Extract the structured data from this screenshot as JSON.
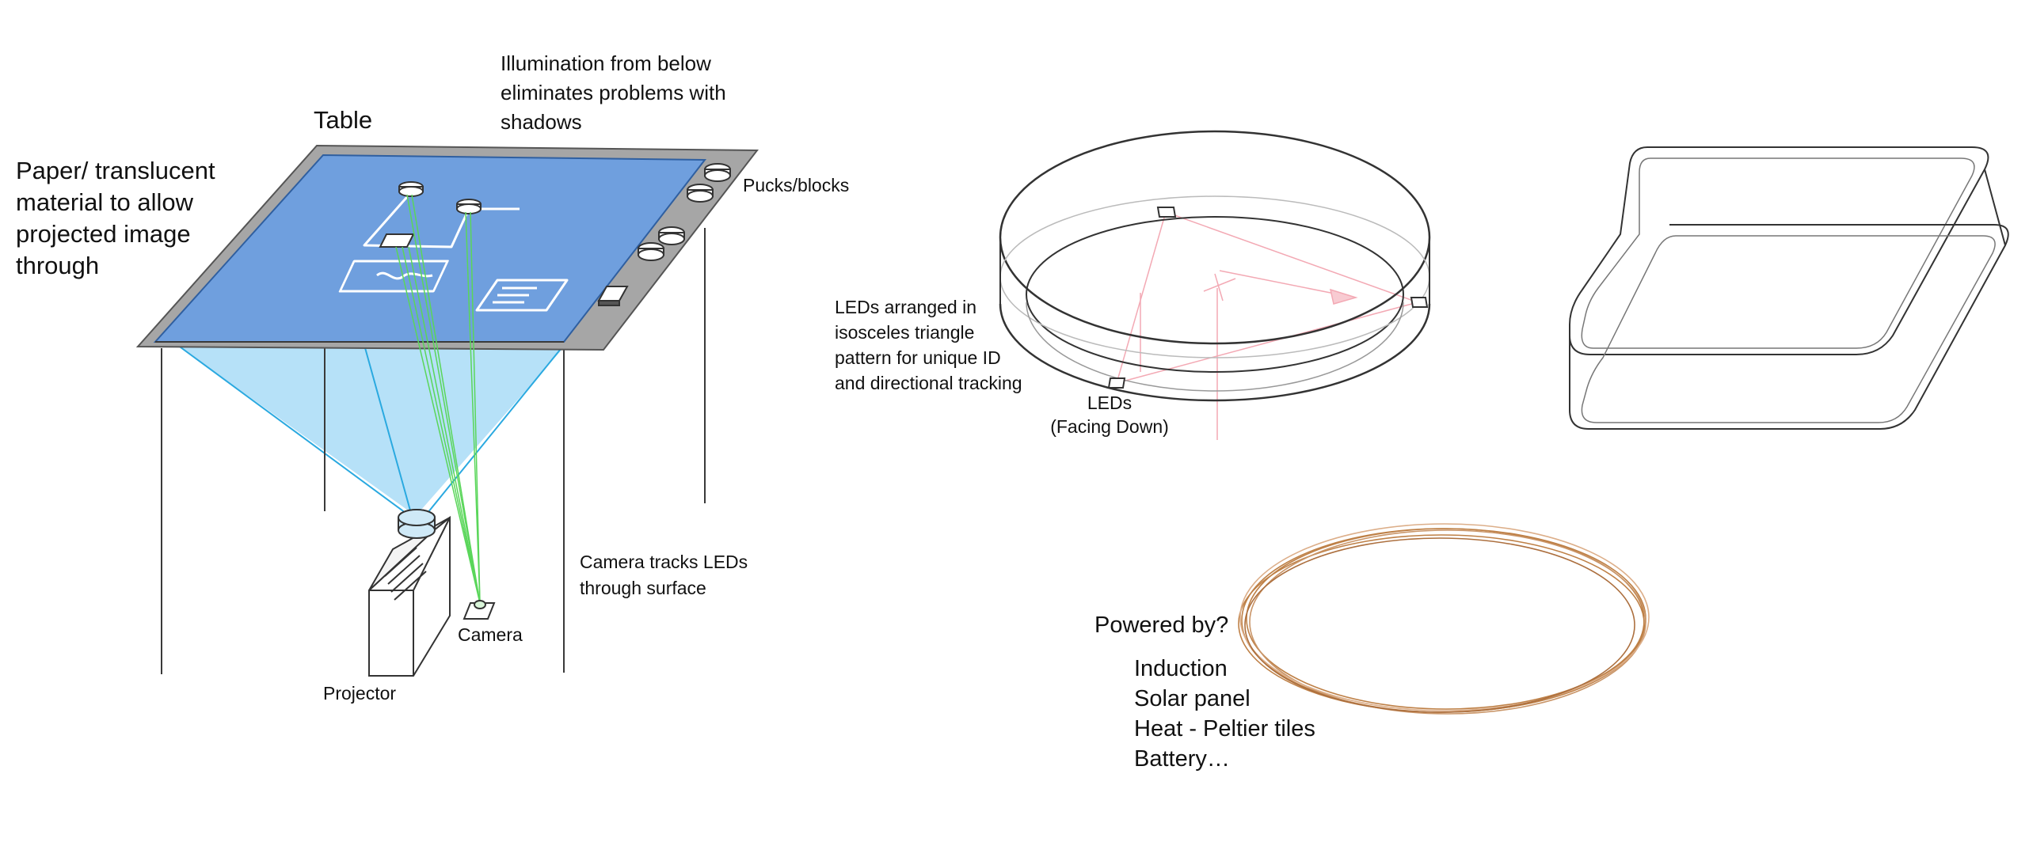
{
  "labels": {
    "table": "Table",
    "illumination": [
      "Illumination from below",
      "eliminates problems with",
      "shadows"
    ],
    "paper": [
      "Paper/ translucent",
      "material to allow",
      "projected image",
      "through"
    ],
    "pucks": "Pucks/blocks",
    "camera_tracks": [
      "Camera tracks LEDs",
      "through surface"
    ],
    "camera": "Camera",
    "projector": "Projector",
    "leds_arranged": [
      "LEDs arranged in",
      "isosceles triangle",
      "pattern for unique ID",
      "and directional tracking"
    ],
    "leds_facing": [
      "LEDs",
      "(Facing Down)"
    ],
    "powered_by": "Powered by?",
    "power_options": [
      "Induction",
      "Solar panel",
      "Heat - Peltier tiles",
      "Battery…"
    ]
  },
  "colors": {
    "table_surface": "#6f9fde",
    "table_frame": "#a6a6a6",
    "projection_fill": "#a9dcf7",
    "projection_lines": "#2aa9e0",
    "camera_rays": "#5ad65a",
    "led_guides": "#f3a9b4",
    "coil": "#b87333",
    "ink": "#3a3a3a"
  }
}
